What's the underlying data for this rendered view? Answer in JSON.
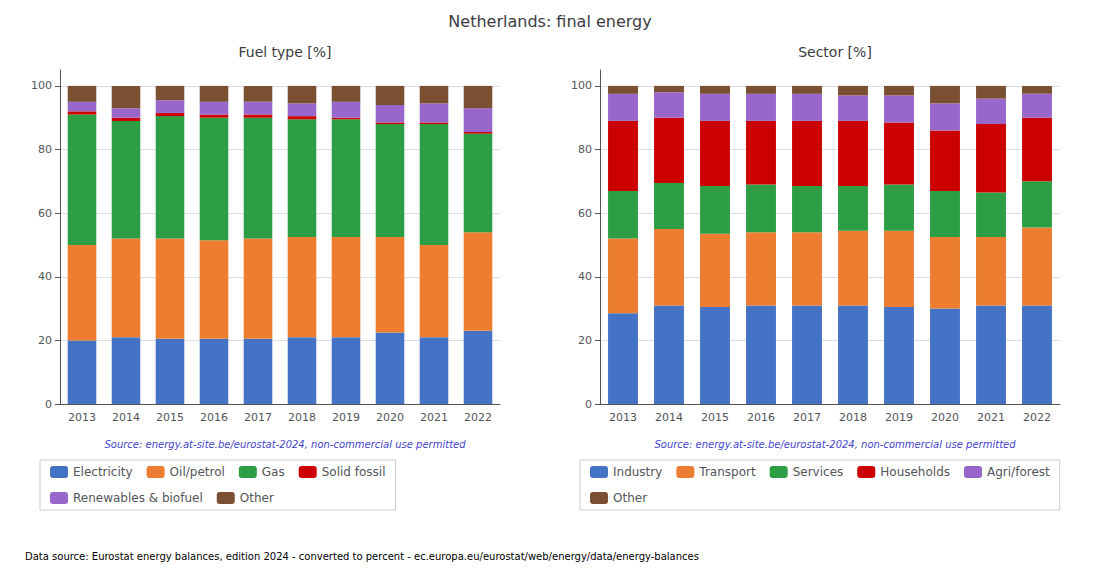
{
  "title": "Netherlands: final energy",
  "annotations": [
    "Data source: Eurostat energy balances, edition 2024 - converted to percent - ec.europa.eu/eurostat/web/energy/data/energy-balances"
  ],
  "chart_data": [
    {
      "type": "bar",
      "stacked": true,
      "title": "Fuel type [%]",
      "categories": [
        "2013",
        "2014",
        "2015",
        "2016",
        "2017",
        "2018",
        "2019",
        "2020",
        "2021",
        "2022"
      ],
      "series": [
        {
          "name": "Electricity",
          "color": "#4472c4",
          "values": [
            20.0,
            21.0,
            20.5,
            20.5,
            20.5,
            21.0,
            21.0,
            22.5,
            21.0,
            23.0
          ]
        },
        {
          "name": "Oil/petrol",
          "color": "#ed7d31",
          "values": [
            30.0,
            31.0,
            31.5,
            31.0,
            31.5,
            31.5,
            31.5,
            30.0,
            29.0,
            31.0
          ]
        },
        {
          "name": "Gas",
          "color": "#2e9e44",
          "values": [
            41.0,
            37.0,
            38.5,
            38.5,
            38.0,
            37.0,
            37.0,
            35.5,
            38.0,
            31.0
          ]
        },
        {
          "name": "Solid fossil",
          "color": "#cc0000",
          "values": [
            1.0,
            1.0,
            1.0,
            1.0,
            1.0,
            1.0,
            0.5,
            0.5,
            0.5,
            0.5
          ]
        },
        {
          "name": "Renewables & biofuel",
          "color": "#9966cc",
          "values": [
            3.0,
            3.0,
            4.0,
            4.0,
            4.0,
            4.0,
            5.0,
            5.5,
            6.0,
            7.5
          ]
        },
        {
          "name": "Other",
          "color": "#7b4f31",
          "values": [
            5.0,
            7.0,
            4.5,
            5.0,
            5.0,
            5.5,
            5.0,
            6.0,
            5.5,
            7.0
          ]
        }
      ],
      "ylim": [
        0,
        105
      ],
      "yticks": [
        0,
        20,
        40,
        60,
        80,
        100
      ],
      "grid": true,
      "legend": "bottom",
      "annotations": [
        "Source: energy.at-site.be/eurostat-2024, non-commercial use permitted"
      ],
      "color": "#4444cc"
    },
    {
      "type": "bar",
      "stacked": true,
      "title": "Sector [%]",
      "categories": [
        "2013",
        "2014",
        "2015",
        "2016",
        "2017",
        "2018",
        "2019",
        "2020",
        "2021",
        "2022"
      ],
      "series": [
        {
          "name": "Industry",
          "color": "#4472c4",
          "values": [
            28.5,
            31.0,
            30.5,
            31.0,
            31.0,
            31.0,
            30.5,
            30.0,
            31.0,
            31.0
          ]
        },
        {
          "name": "Transport",
          "color": "#ed7d31",
          "values": [
            23.5,
            24.0,
            23.0,
            23.0,
            23.0,
            23.5,
            24.0,
            22.5,
            21.5,
            24.5
          ]
        },
        {
          "name": "Services",
          "color": "#2e9e44",
          "values": [
            15.0,
            14.5,
            15.0,
            15.0,
            14.5,
            14.0,
            14.5,
            14.5,
            14.0,
            14.5
          ]
        },
        {
          "name": "Households",
          "color": "#cc0000",
          "values": [
            22.0,
            20.5,
            20.5,
            20.0,
            20.5,
            20.5,
            19.5,
            19.0,
            21.5,
            20.0
          ]
        },
        {
          "name": "Agri/forest",
          "color": "#9966cc",
          "values": [
            8.5,
            8.0,
            8.5,
            8.5,
            8.5,
            8.0,
            8.5,
            8.5,
            8.0,
            7.5
          ]
        },
        {
          "name": "Other",
          "color": "#7b4f31",
          "values": [
            2.5,
            2.0,
            2.5,
            2.5,
            2.5,
            3.0,
            3.0,
            5.5,
            4.0,
            2.5
          ]
        }
      ],
      "ylim": [
        0,
        105
      ],
      "yticks": [
        0,
        20,
        40,
        60,
        80,
        100
      ],
      "grid": true,
      "legend": "bottom",
      "annotations": [
        "Source: energy.at-site.be/eurostat-2024, non-commercial use permitted"
      ],
      "color": "#4444cc"
    }
  ]
}
